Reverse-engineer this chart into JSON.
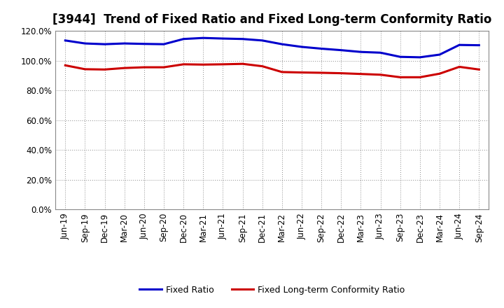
{
  "title": "[3944]  Trend of Fixed Ratio and Fixed Long-term Conformity Ratio",
  "x_labels": [
    "Jun-19",
    "Sep-19",
    "Dec-19",
    "Mar-20",
    "Jun-20",
    "Sep-20",
    "Dec-20",
    "Mar-21",
    "Jun-21",
    "Sep-21",
    "Dec-21",
    "Mar-22",
    "Jun-22",
    "Sep-22",
    "Dec-22",
    "Mar-23",
    "Jun-23",
    "Sep-23",
    "Dec-23",
    "Mar-24",
    "Jun-24",
    "Sep-24"
  ],
  "fixed_ratio": [
    113.5,
    111.5,
    111.0,
    111.5,
    111.2,
    111.0,
    114.5,
    115.2,
    114.8,
    114.5,
    113.5,
    111.0,
    109.2,
    108.0,
    107.0,
    105.8,
    105.3,
    102.5,
    102.2,
    104.0,
    110.5,
    110.3
  ],
  "fixed_lt_ratio": [
    96.8,
    94.2,
    94.0,
    95.0,
    95.5,
    95.5,
    97.5,
    97.3,
    97.5,
    97.8,
    96.2,
    92.3,
    92.0,
    91.8,
    91.5,
    91.0,
    90.5,
    88.8,
    88.8,
    91.2,
    95.8,
    94.0
  ],
  "fixed_ratio_color": "#0000cc",
  "fixed_lt_ratio_color": "#cc0000",
  "ylim": [
    0,
    120
  ],
  "yticks": [
    0,
    20,
    40,
    60,
    80,
    100,
    120
  ],
  "ytick_labels": [
    "0.0%",
    "20.0%",
    "40.0%",
    "60.0%",
    "80.0%",
    "100.0%",
    "120.0%"
  ],
  "background_color": "#ffffff",
  "grid_color": "#888888",
  "line_width": 2.2,
  "legend_fixed_ratio": "Fixed Ratio",
  "legend_fixed_lt_ratio": "Fixed Long-term Conformity Ratio",
  "title_fontsize": 12,
  "tick_fontsize": 8.5,
  "legend_fontsize": 9
}
